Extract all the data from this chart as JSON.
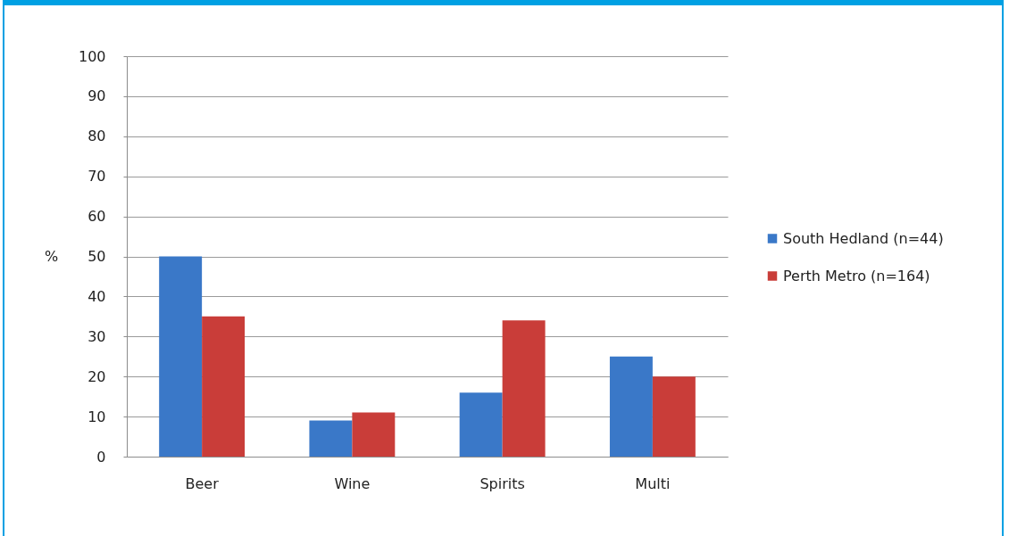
{
  "chart_data": {
    "type": "bar",
    "ylabel": "%",
    "categories": [
      "Beer",
      "Wine",
      "Spirits",
      "Multi"
    ],
    "series": [
      {
        "name": "South Hedland (n=44)",
        "color": "#3a78c8",
        "values": [
          50,
          9,
          16,
          25
        ]
      },
      {
        "name": "Perth Metro (n=164)",
        "color": "#c93d39",
        "values": [
          35,
          11,
          34,
          20
        ]
      }
    ],
    "ylim": [
      0,
      100
    ],
    "yticks": [
      0,
      10,
      20,
      30,
      40,
      50,
      60,
      70,
      80,
      90,
      100
    ],
    "grid": "y",
    "legend": "right"
  }
}
